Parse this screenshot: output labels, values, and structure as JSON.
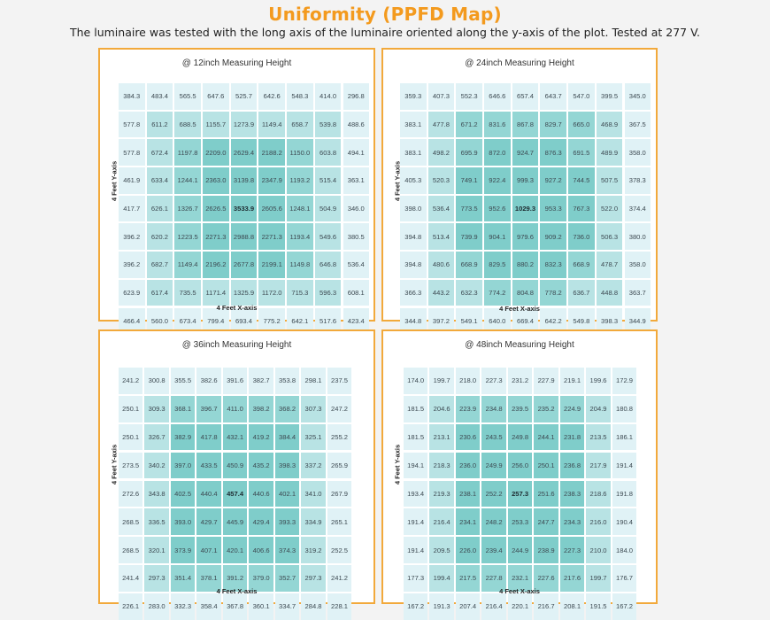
{
  "header": {
    "title": "Uniformity (PPFD Map)",
    "subtitle": "The luminaire was tested with the long axis of the luminaire oriented along the y-axis of the plot. Tested at 277 V."
  },
  "colors": {
    "title_orange": "#f39a1e",
    "panel_border": "#f2a93b",
    "cell_light": "#e0f2f6",
    "cell_mid": "#b8e3e4",
    "cell_dark": "#7fcdca"
  },
  "panels": [
    {
      "title": "@ 12inch Measuring Height",
      "xlabel": "4 Feet X-axis",
      "ylabel": "4 Feet Y-axis",
      "max_value": "3533.9"
    },
    {
      "title": "@ 24inch Measuring Height",
      "xlabel": "4 Feet X-axis",
      "ylabel": "4 Feet Y-axis",
      "max_value": "1029.3"
    },
    {
      "title": "@ 36inch Measuring Height",
      "xlabel": "4 Feet X-axis",
      "ylabel": "4 Feet Y-axis",
      "max_value": "457.4"
    },
    {
      "title": "@ 48inch Measuring Height",
      "xlabel": "4 Feet X-axis",
      "ylabel": "4 Feet Y-axis",
      "max_value": "257.3"
    }
  ],
  "chart_data": [
    {
      "type": "heatmap",
      "title": "@ 12inch Measuring Height",
      "xlabel": "4 Feet X-axis",
      "ylabel": "4 Feet Y-axis",
      "values": [
        [
          "384.3",
          "483.4",
          "565.5",
          "647.6",
          "525.7",
          "642.6",
          "548.3",
          "414.0",
          "296.8"
        ],
        [
          "577.8",
          "611.2",
          "688.5",
          "1155.7",
          "1273.9",
          "1149.4",
          "658.7",
          "539.8",
          "488.6"
        ],
        [
          "577.8",
          "672.4",
          "1197.8",
          "2209.0",
          "2629.4",
          "2188.2",
          "1150.0",
          "603.8",
          "494.1"
        ],
        [
          "461.9",
          "633.4",
          "1244.1",
          "2363.0",
          "3139.8",
          "2347.9",
          "1193.2",
          "515.4",
          "363.1"
        ],
        [
          "417.7",
          "626.1",
          "1326.7",
          "2626.5",
          "3533.9",
          "2605.6",
          "1248.1",
          "504.9",
          "346.0"
        ],
        [
          "396.2",
          "620.2",
          "1223.5",
          "2271.3",
          "2988.8",
          "2271.3",
          "1193.4",
          "549.6",
          "380.5"
        ],
        [
          "396.2",
          "682.7",
          "1149.4",
          "2196.2",
          "2677.8",
          "2199.1",
          "1149.8",
          "646.8",
          "536.4"
        ],
        [
          "623.9",
          "617.4",
          "735.5",
          "1171.4",
          "1325.9",
          "1172.0",
          "715.3",
          "596.3",
          "608.1"
        ],
        [
          "466.4",
          "560.0",
          "673.4",
          "799.4",
          "693.4",
          "775.2",
          "642.1",
          "517.6",
          "423.4"
        ]
      ]
    },
    {
      "type": "heatmap",
      "title": "@ 24inch Measuring Height",
      "xlabel": "4 Feet X-axis",
      "ylabel": "4 Feet Y-axis",
      "values": [
        [
          "359.3",
          "407.3",
          "552.3",
          "646.6",
          "657.4",
          "643.7",
          "547.0",
          "399.5",
          "345.0"
        ],
        [
          "383.1",
          "477.8",
          "671.2",
          "831.6",
          "867.8",
          "829.7",
          "665.0",
          "468.9",
          "367.5"
        ],
        [
          "383.1",
          "498.2",
          "695.9",
          "872.0",
          "924.7",
          "876.3",
          "691.5",
          "489.9",
          "358.0"
        ],
        [
          "405.3",
          "520.3",
          "749.1",
          "922.4",
          "999.3",
          "927.2",
          "744.5",
          "507.5",
          "378.3"
        ],
        [
          "398.0",
          "536.4",
          "773.5",
          "952.6",
          "1029.3",
          "953.3",
          "767.3",
          "522.0",
          "374.4"
        ],
        [
          "394.8",
          "513.4",
          "739.9",
          "904.1",
          "979.6",
          "909.2",
          "736.0",
          "506.3",
          "380.0"
        ],
        [
          "394.8",
          "480.6",
          "668.9",
          "829.5",
          "880.2",
          "832.3",
          "668.9",
          "478.7",
          "358.0"
        ],
        [
          "366.3",
          "443.2",
          "632.3",
          "774.2",
          "804.8",
          "778.2",
          "636.7",
          "448.8",
          "363.7"
        ],
        [
          "344.8",
          "397.2",
          "549.1",
          "640.0",
          "669.4",
          "642.2",
          "549.8",
          "398.3",
          "344.9"
        ]
      ]
    },
    {
      "type": "heatmap",
      "title": "@ 36inch Measuring Height",
      "xlabel": "4 Feet X-axis",
      "ylabel": "4 Feet Y-axis",
      "values": [
        [
          "241.2",
          "300.8",
          "355.5",
          "382.6",
          "391.6",
          "382.7",
          "353.8",
          "298.1",
          "237.5"
        ],
        [
          "250.1",
          "309.3",
          "368.1",
          "396.7",
          "411.0",
          "398.2",
          "368.2",
          "307.3",
          "247.2"
        ],
        [
          "250.1",
          "326.7",
          "382.9",
          "417.8",
          "432.1",
          "419.2",
          "384.4",
          "325.1",
          "255.2"
        ],
        [
          "273.5",
          "340.2",
          "397.0",
          "433.5",
          "450.9",
          "435.2",
          "398.3",
          "337.2",
          "265.9"
        ],
        [
          "272.6",
          "343.8",
          "402.5",
          "440.4",
          "457.4",
          "440.6",
          "402.1",
          "341.0",
          "267.9"
        ],
        [
          "268.5",
          "336.5",
          "393.0",
          "429.7",
          "445.9",
          "429.4",
          "393.3",
          "334.9",
          "265.1"
        ],
        [
          "268.5",
          "320.1",
          "373.9",
          "407.1",
          "420.1",
          "406.6",
          "374.3",
          "319.2",
          "252.5"
        ],
        [
          "241.4",
          "297.3",
          "351.4",
          "378.1",
          "391.2",
          "379.0",
          "352.7",
          "297.3",
          "241.2"
        ],
        [
          "226.1",
          "283.0",
          "332.3",
          "358.4",
          "367.8",
          "360.1",
          "334.7",
          "284.8",
          "228.1"
        ]
      ]
    },
    {
      "type": "heatmap",
      "title": "@ 48inch Measuring Height",
      "xlabel": "4 Feet X-axis",
      "ylabel": "4 Feet Y-axis",
      "values": [
        [
          "174.0",
          "199.7",
          "218.0",
          "227.3",
          "231.2",
          "227.9",
          "219.1",
          "199.6",
          "172.9"
        ],
        [
          "181.5",
          "204.6",
          "223.9",
          "234.8",
          "239.5",
          "235.2",
          "224.9",
          "204.9",
          "180.8"
        ],
        [
          "181.5",
          "213.1",
          "230.6",
          "243.5",
          "249.8",
          "244.1",
          "231.8",
          "213.5",
          "186.1"
        ],
        [
          "194.1",
          "218.3",
          "236.0",
          "249.9",
          "256.0",
          "250.1",
          "236.8",
          "217.9",
          "191.4"
        ],
        [
          "193.4",
          "219.3",
          "238.1",
          "252.2",
          "257.3",
          "251.6",
          "238.3",
          "218.6",
          "191.8"
        ],
        [
          "191.4",
          "216.4",
          "234.1",
          "248.2",
          "253.3",
          "247.7",
          "234.3",
          "216.0",
          "190.4"
        ],
        [
          "191.4",
          "209.5",
          "226.0",
          "239.4",
          "244.9",
          "238.9",
          "227.3",
          "210.0",
          "184.0"
        ],
        [
          "177.3",
          "199.4",
          "217.5",
          "227.8",
          "232.1",
          "227.6",
          "217.6",
          "199.7",
          "176.7"
        ],
        [
          "167.2",
          "191.3",
          "207.4",
          "216.4",
          "220.1",
          "216.7",
          "208.1",
          "191.5",
          "167.2"
        ]
      ]
    }
  ]
}
